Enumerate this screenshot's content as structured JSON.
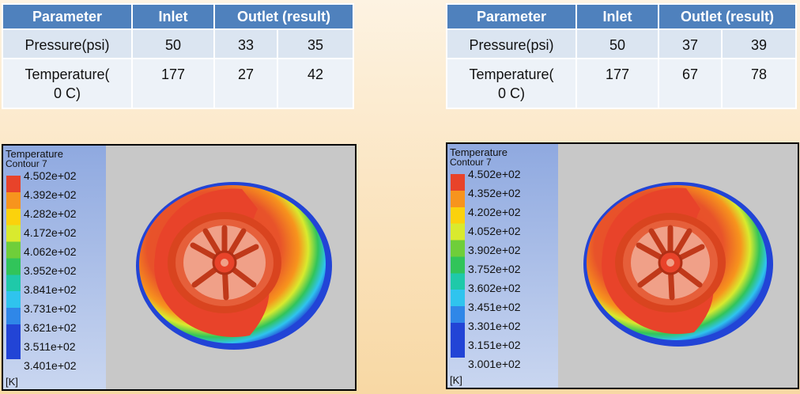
{
  "tables": [
    {
      "headers": [
        "Parameter",
        "Inlet",
        "Outlet (result)"
      ],
      "rows": [
        {
          "param": "Pressure(psi)",
          "inlet": "50",
          "out1": "33",
          "out2": "35"
        },
        {
          "param_line1": "Temperature(",
          "param_line2": "0 C)",
          "inlet": "177",
          "out1": "27",
          "out2": "42"
        }
      ]
    },
    {
      "headers": [
        "Parameter",
        "Inlet",
        "Outlet (result)"
      ],
      "rows": [
        {
          "param": "Pressure(psi)",
          "inlet": "50",
          "out1": "37",
          "out2": "39"
        },
        {
          "param_line1": "Temperature(",
          "param_line2": "0 C)",
          "inlet": "177",
          "out1": "67",
          "out2": "78"
        }
      ]
    }
  ],
  "contours": [
    {
      "title": "Temperature",
      "subtitle": "Contour 7",
      "unit": "[K]",
      "labels": [
        "4.502e+02",
        "4.392e+02",
        "4.282e+02",
        "4.172e+02",
        "4.062e+02",
        "3.952e+02",
        "3.841e+02",
        "3.731e+02",
        "3.621e+02",
        "3.511e+02",
        "3.401e+02"
      ]
    },
    {
      "title": "Temperature",
      "subtitle": "Contour 7",
      "unit": "[K]",
      "labels": [
        "4.502e+02",
        "4.352e+02",
        "4.202e+02",
        "4.052e+02",
        "3.902e+02",
        "3.752e+02",
        "3.602e+02",
        "3.451e+02",
        "3.301e+02",
        "3.151e+02",
        "3.001e+02"
      ]
    }
  ],
  "colors": {
    "header_blue": "#4f81bd",
    "cell_blue": "#dbe5f1",
    "hot": "#e8432a",
    "cold": "#2244d6"
  }
}
